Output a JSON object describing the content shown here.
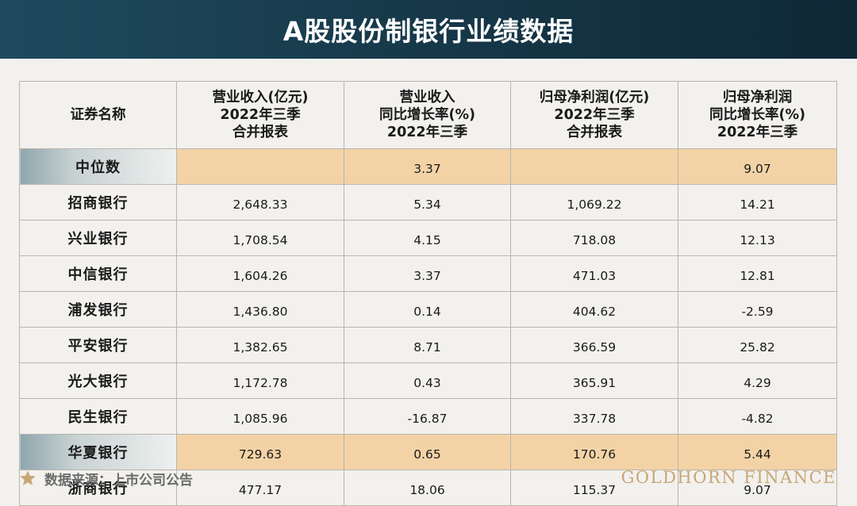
{
  "title": "A股股份制银行业绩数据",
  "table": {
    "headers": [
      [
        "证券名称"
      ],
      [
        "营业收入(亿元)",
        "2022年三季",
        "合并报表"
      ],
      [
        "营业收入",
        "同比增长率(%)",
        "2022年三季"
      ],
      [
        "归母净利润(亿元)",
        "2022年三季",
        "合并报表"
      ],
      [
        "归母净利润",
        "同比增长率(%)",
        "2022年三季"
      ]
    ],
    "rows": [
      {
        "name": "中位数",
        "revenue": "",
        "revenue_growth": "3.37",
        "net_profit": "",
        "profit_growth": "9.07",
        "highlight": true
      },
      {
        "name": "招商银行",
        "revenue": "2,648.33",
        "revenue_growth": "5.34",
        "net_profit": "1,069.22",
        "profit_growth": "14.21",
        "highlight": false
      },
      {
        "name": "兴业银行",
        "revenue": "1,708.54",
        "revenue_growth": "4.15",
        "net_profit": "718.08",
        "profit_growth": "12.13",
        "highlight": false
      },
      {
        "name": "中信银行",
        "revenue": "1,604.26",
        "revenue_growth": "3.37",
        "net_profit": "471.03",
        "profit_growth": "12.81",
        "highlight": false
      },
      {
        "name": "浦发银行",
        "revenue": "1,436.80",
        "revenue_growth": "0.14",
        "net_profit": "404.62",
        "profit_growth": "-2.59",
        "highlight": false
      },
      {
        "name": "平安银行",
        "revenue": "1,382.65",
        "revenue_growth": "8.71",
        "net_profit": "366.59",
        "profit_growth": "25.82",
        "highlight": false
      },
      {
        "name": "光大银行",
        "revenue": "1,172.78",
        "revenue_growth": "0.43",
        "net_profit": "365.91",
        "profit_growth": "4.29",
        "highlight": false
      },
      {
        "name": "民生银行",
        "revenue": "1,085.96",
        "revenue_growth": "-16.87",
        "net_profit": "337.78",
        "profit_growth": "-4.82",
        "highlight": false
      },
      {
        "name": "华夏银行",
        "revenue": "729.63",
        "revenue_growth": "0.65",
        "net_profit": "170.76",
        "profit_growth": "5.44",
        "highlight": true
      },
      {
        "name": "浙商银行",
        "revenue": "477.17",
        "revenue_growth": "18.06",
        "net_profit": "115.37",
        "profit_growth": "9.07",
        "highlight": false
      }
    ]
  },
  "footer": {
    "source": "数据来源：上市公司公告",
    "brand": "GOLDHORN FINANCE",
    "star_icon": "star-icon",
    "star_color": "#c9a575"
  },
  "colors": {
    "title_bar": "#173a4b",
    "highlight_row": "#f3d3a6",
    "brand": "#c9a575"
  }
}
